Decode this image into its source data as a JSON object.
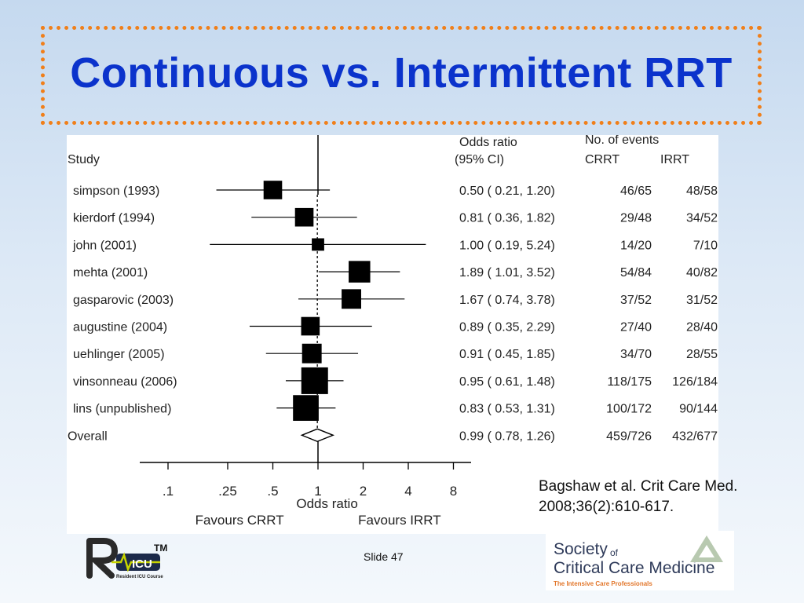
{
  "slide": {
    "title": "Continuous vs. Intermittent RRT",
    "citation_line1": "Bagshaw et al. Crit Care Med.",
    "citation_line2": "2008;36(2):610-617.",
    "slide_number": "Slide 47"
  },
  "logos": {
    "ricu_tm": "TM",
    "ricu_sub": "Resident ICU Course",
    "sccm_line1": "Society",
    "sccm_of": "of",
    "sccm_line2": "Critical Care Medicine",
    "sccm_tagline": "The Intensive Care Professionals"
  },
  "colors": {
    "title": "#0b33cc",
    "border": "#f07f1a",
    "markers": "#000000",
    "sccm_tagline": "#e2762a"
  },
  "chart_data": {
    "type": "forest",
    "headers": {
      "study": "Study",
      "or_line1": "Odds ratio",
      "or_line2": "(95% CI)",
      "events": "No. of events",
      "crrt": "CRRT",
      "irrt": "IRRT"
    },
    "studies": [
      {
        "name": "simpson (1993)",
        "or": 0.5,
        "lo": 0.21,
        "hi": 1.2,
        "ci_text": "0.50 ( 0.21, 1.20)",
        "crrt": "46/65",
        "irrt": "48/58",
        "weight": 0.6
      },
      {
        "name": "kierdorf (1994)",
        "or": 0.81,
        "lo": 0.36,
        "hi": 1.82,
        "ci_text": "0.81 ( 0.36, 1.82)",
        "crrt": "29/48",
        "irrt": "34/52",
        "weight": 0.6
      },
      {
        "name": "john (2001)",
        "or": 1.0,
        "lo": 0.19,
        "hi": 5.24,
        "ci_text": "1.00 ( 0.19, 5.24)",
        "crrt": "14/20",
        "irrt": "7/10",
        "weight": 0.3
      },
      {
        "name": "mehta (2001)",
        "or": 1.89,
        "lo": 1.01,
        "hi": 3.52,
        "ci_text": "1.89 ( 1.01, 3.52)",
        "crrt": "54/84",
        "irrt": "40/82",
        "weight": 0.75
      },
      {
        "name": "gasparovic (2003)",
        "or": 1.67,
        "lo": 0.74,
        "hi": 3.78,
        "ci_text": "1.67 ( 0.74, 3.78)",
        "crrt": "37/52",
        "irrt": "31/52",
        "weight": 0.65
      },
      {
        "name": "augustine (2004)",
        "or": 0.89,
        "lo": 0.35,
        "hi": 2.29,
        "ci_text": "0.89 ( 0.35, 2.29)",
        "crrt": "27/40",
        "irrt": "28/40",
        "weight": 0.6
      },
      {
        "name": "uehlinger (2005)",
        "or": 0.91,
        "lo": 0.45,
        "hi": 1.85,
        "ci_text": "0.91 ( 0.45, 1.85)",
        "crrt": "34/70",
        "irrt": "28/55",
        "weight": 0.65
      },
      {
        "name": "vinsonneau (2006)",
        "or": 0.95,
        "lo": 0.61,
        "hi": 1.48,
        "ci_text": "0.95 ( 0.61, 1.48)",
        "crrt": "118/175",
        "irrt": "126/184",
        "weight": 1.0
      },
      {
        "name": "lins (unpublished)",
        "or": 0.83,
        "lo": 0.53,
        "hi": 1.31,
        "ci_text": "0.83 ( 0.53, 1.31)",
        "crrt": "100/172",
        "irrt": "90/144",
        "weight": 0.95
      }
    ],
    "overall": {
      "name": "Overall",
      "or": 0.99,
      "lo": 0.78,
      "hi": 1.26,
      "ci_text": "0.99 ( 0.78, 1.26)",
      "crrt": "459/726",
      "irrt": "432/677"
    },
    "x_scale": "log",
    "xlim": [
      0.07,
      10.5
    ],
    "x_ticks": [
      0.1,
      0.25,
      0.5,
      1,
      2,
      4,
      8
    ],
    "x_tick_labels": [
      ".1",
      ".25",
      ".5",
      "1",
      "2",
      "4",
      "8"
    ],
    "reference_line": 1,
    "xlabel": "Odds ratio",
    "favours_left": "Favours CRRT",
    "favours_right": "Favours IRRT"
  }
}
